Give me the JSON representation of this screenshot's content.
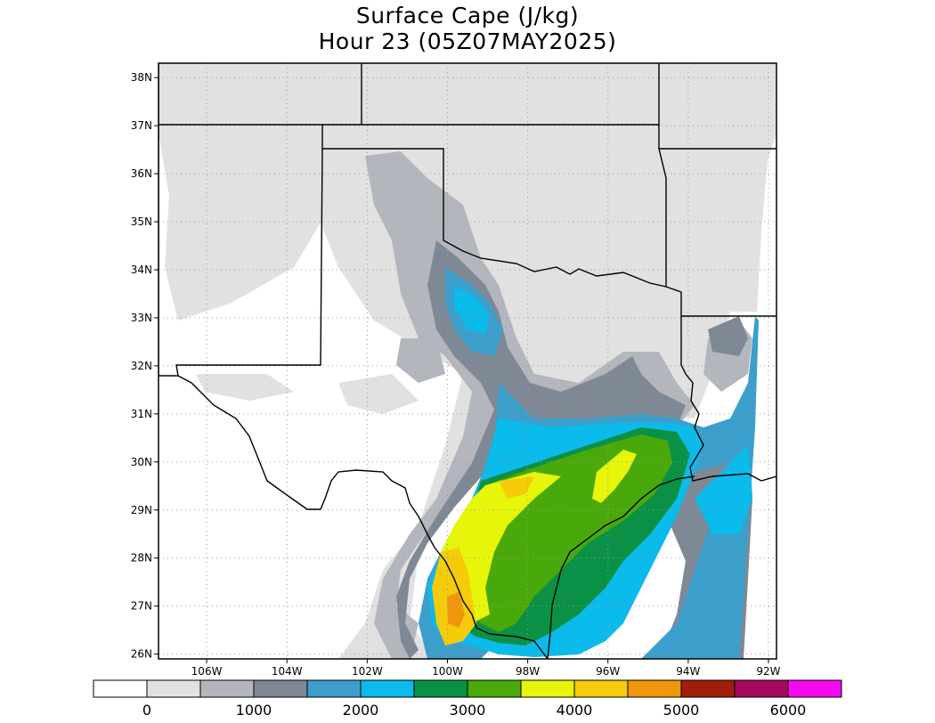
{
  "title": {
    "line1": "Surface Cape (J/kg)",
    "line2": "Hour 23 (05Z07MAY2025)"
  },
  "map": {
    "lon_range": [
      -107.2,
      -91.8
    ],
    "lat_range": [
      25.9,
      38.3
    ],
    "lat_ticks": [
      {
        "value": 26,
        "label": "26N"
      },
      {
        "value": 27,
        "label": "27N"
      },
      {
        "value": 28,
        "label": "28N"
      },
      {
        "value": 29,
        "label": "29N"
      },
      {
        "value": 30,
        "label": "30N"
      },
      {
        "value": 31,
        "label": "31N"
      },
      {
        "value": 32,
        "label": "32N"
      },
      {
        "value": 33,
        "label": "33N"
      },
      {
        "value": 34,
        "label": "34N"
      },
      {
        "value": 35,
        "label": "35N"
      },
      {
        "value": 36,
        "label": "36N"
      },
      {
        "value": 37,
        "label": "37N"
      },
      {
        "value": 38,
        "label": "38N"
      }
    ],
    "lon_ticks": [
      {
        "value": -106,
        "label": "106W"
      },
      {
        "value": -104,
        "label": "104W"
      },
      {
        "value": -102,
        "label": "102W"
      },
      {
        "value": -100,
        "label": "100W"
      },
      {
        "value": -98,
        "label": "98W"
      },
      {
        "value": -96,
        "label": "96W"
      },
      {
        "value": -94,
        "label": "94W"
      },
      {
        "value": -92,
        "label": "92W"
      }
    ],
    "grid": true,
    "units": "J/kg"
  },
  "colorbar": {
    "colors": [
      "#ffffff",
      "#e1e1e1",
      "#b4b6bd",
      "#7f8895",
      "#3c9fcb",
      "#0abbeb",
      "#0a9146",
      "#4aa90a",
      "#e6f50a",
      "#f5cb0a",
      "#f0960a",
      "#a01e0a",
      "#a5095f",
      "#f50af0"
    ],
    "labels": [
      {
        "value": 0,
        "label": "0"
      },
      {
        "value": 1000,
        "label": "1000"
      },
      {
        "value": 2000,
        "label": "2000"
      },
      {
        "value": 3000,
        "label": "3000"
      },
      {
        "value": 4000,
        "label": "4000"
      },
      {
        "value": 5000,
        "label": "5000"
      },
      {
        "value": 6000,
        "label": "6000"
      }
    ]
  }
}
